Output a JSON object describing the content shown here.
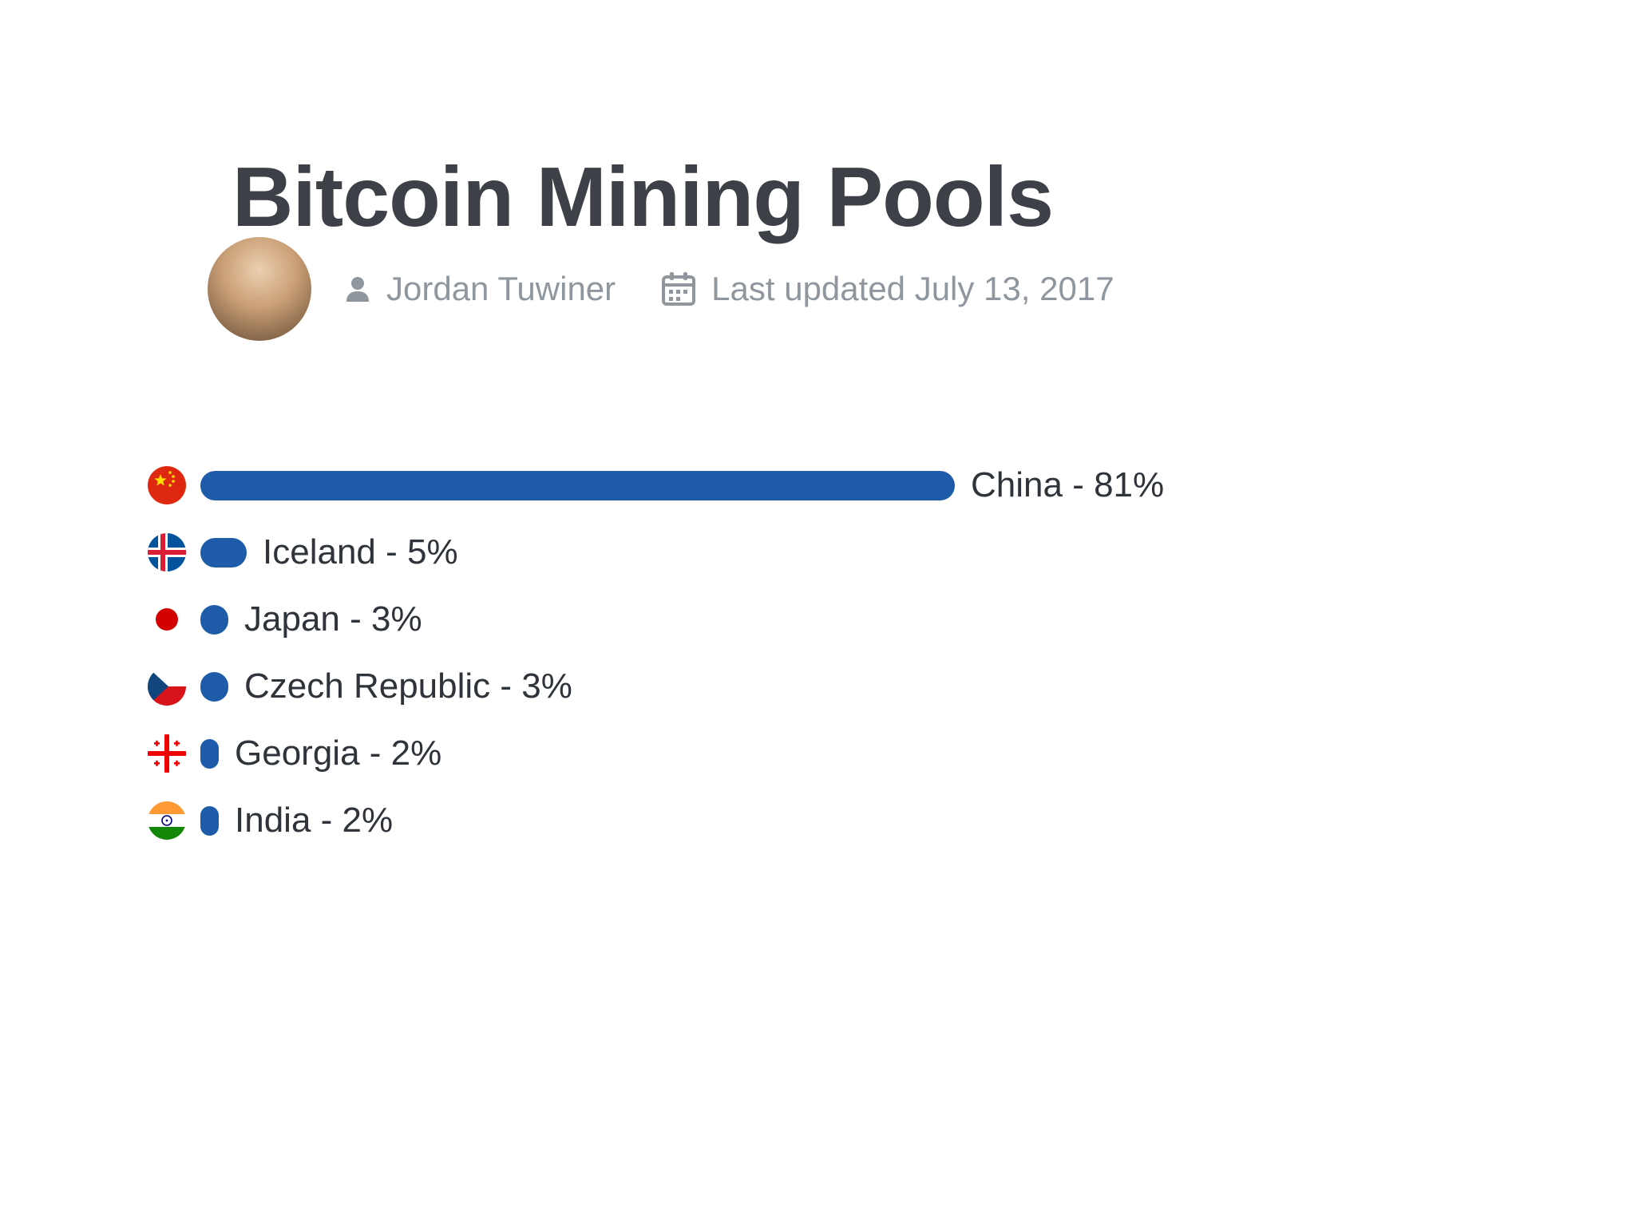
{
  "page": {
    "title": "Bitcoin Mining Pools"
  },
  "byline": {
    "author": "Jordan Tuwiner",
    "updated": "Last updated July 13, 2017",
    "author_icon": "person-icon",
    "date_icon": "calendar-icon",
    "text_color": "#8f969e"
  },
  "chart_data": {
    "type": "bar",
    "orientation": "horizontal",
    "title": "Bitcoin Mining Pools",
    "categories": [
      "China",
      "Iceland",
      "Japan",
      "Czech Republic",
      "Georgia",
      "India"
    ],
    "values": [
      81,
      5,
      3,
      3,
      2,
      2
    ],
    "unit": "%",
    "labels": [
      "China - 81%",
      "Iceland - 5%",
      "Japan - 3%",
      "Czech Republic - 3%",
      "Georgia - 2%",
      "India - 2%"
    ],
    "flag_icons": [
      "china-flag-icon",
      "iceland-flag-icon",
      "japan-flag-icon",
      "czech-republic-flag-icon",
      "georgia-flag-icon",
      "india-flag-icon"
    ],
    "bar_color": "#1e5caa",
    "xlim": [
      0,
      81
    ],
    "grid": false,
    "legend": false
  },
  "colors": {
    "title_text": "#3d4147",
    "byline_text": "#8f969e",
    "label_text": "#2f343a",
    "bar": "#1e5caa"
  }
}
